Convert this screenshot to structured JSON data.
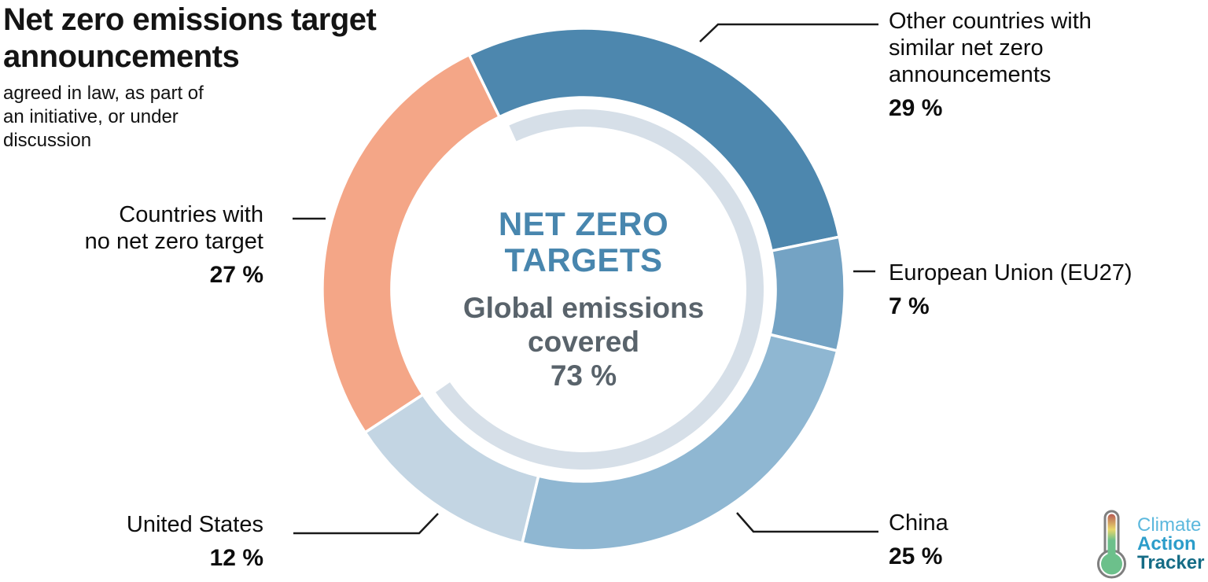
{
  "header": {
    "title_lines": [
      "Net zero emissions target",
      "announcements"
    ],
    "subtitle_lines": [
      "agreed in law, as part of",
      "an initiative, or under",
      "discussion"
    ]
  },
  "chart_data": {
    "type": "pie",
    "variant": "donut",
    "title": "Net zero emissions target announcements",
    "subtitle": "agreed in law, as part of an initiative, or under discussion",
    "start_angle_deg": -26,
    "direction": "clockwise",
    "legend_position": "callouts-around-donut",
    "segments": [
      {
        "label": "Other countries with similar net zero announcements",
        "value": 29,
        "unit": "%",
        "color": "#4d87ae"
      },
      {
        "label": "European Union (EU27)",
        "value": 7,
        "unit": "%",
        "color": "#74a3c4"
      },
      {
        "label": "China",
        "value": 25,
        "unit": "%",
        "color": "#8fb7d2"
      },
      {
        "label": "United States",
        "value": 12,
        "unit": "%",
        "color": "#c3d5e3"
      },
      {
        "label": "Countries with no net zero target",
        "value": 27,
        "unit": "%",
        "color": "#f4a687"
      }
    ],
    "coverage_arc": {
      "label": "Global emissions covered",
      "value_pct": 73,
      "color": "#d6dfe8"
    },
    "center_text": {
      "title_lines": [
        "NET ZERO",
        "TARGETS"
      ],
      "subtitle_lines": [
        "Global emissions",
        "covered"
      ],
      "value": "73 %",
      "title_color": "#4886ae",
      "sub_color": "#59636b"
    }
  },
  "callouts": {
    "other": {
      "lines": [
        "Other countries with",
        "similar net zero",
        "announcements"
      ],
      "value": "29 %"
    },
    "eu": {
      "lines": [
        "European Union (EU27)"
      ],
      "value": "7 %"
    },
    "china": {
      "lines": [
        "China"
      ],
      "value": "25 %"
    },
    "us": {
      "lines": [
        "United States"
      ],
      "value": "12 %"
    },
    "none": {
      "lines": [
        "Countries with",
        "no net zero target"
      ],
      "value": "27 %"
    }
  },
  "logo": {
    "words": [
      {
        "text": "Climate",
        "color": "#5cb8dd"
      },
      {
        "text": "Action",
        "color": "#2c9dca"
      },
      {
        "text": "Tracker",
        "color": "#156c86"
      }
    ],
    "icon": "thermometer-icon",
    "thermometer_colors": {
      "top": "#b85c54",
      "mid": "#e8d66a",
      "bottom": "#6cc08b",
      "outline": "#7f7f7f"
    }
  }
}
